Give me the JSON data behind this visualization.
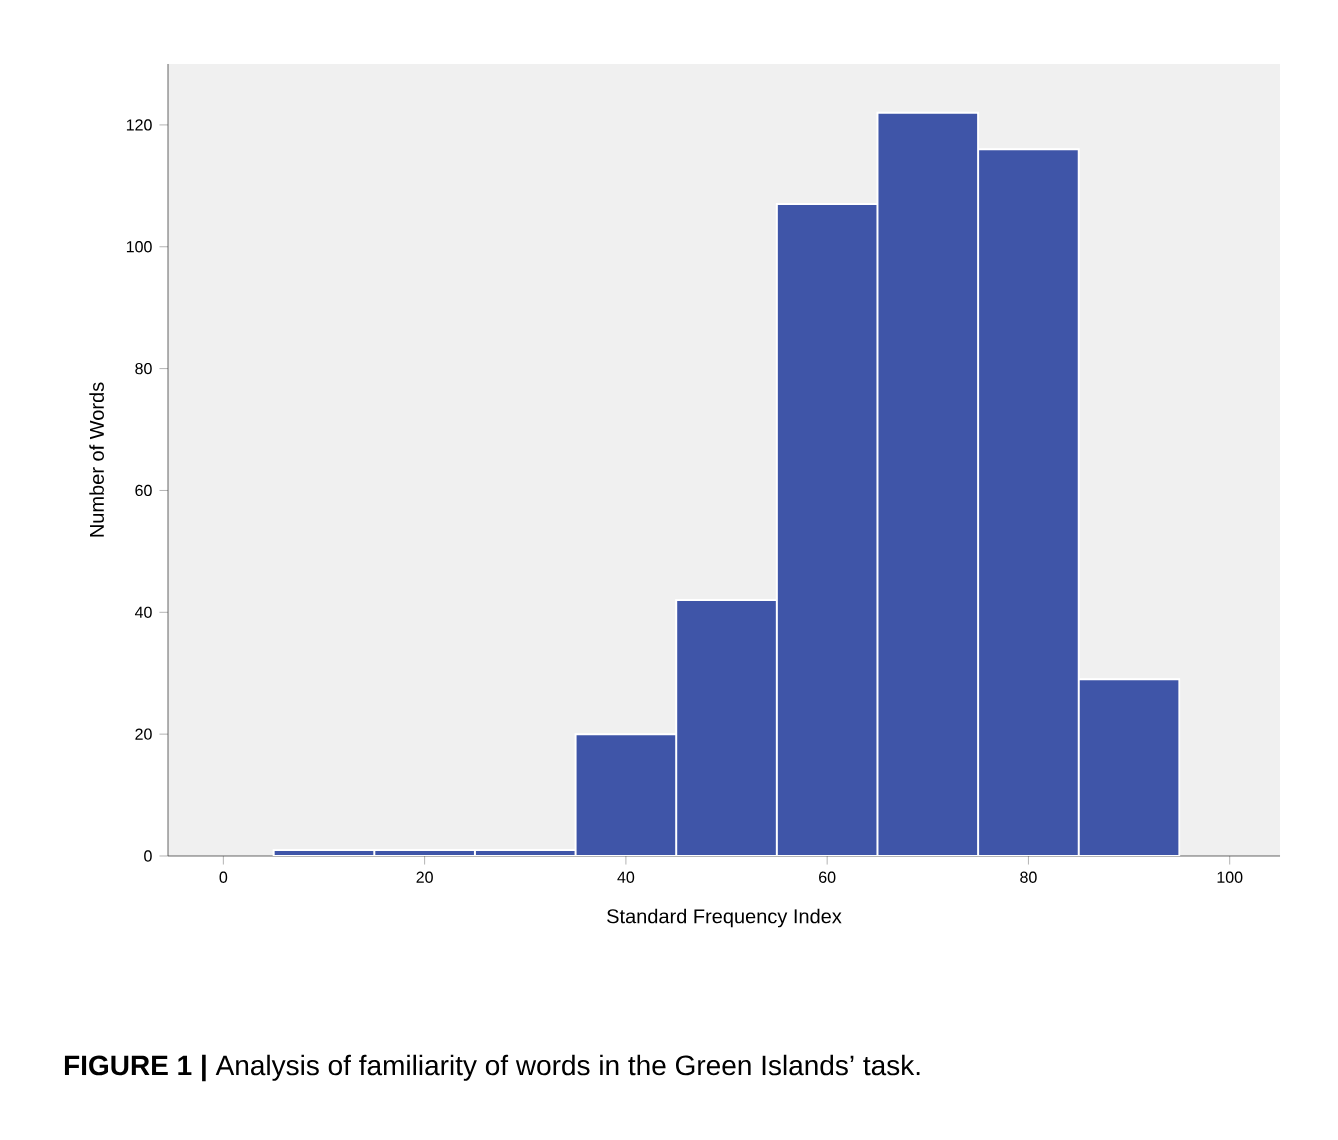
{
  "chart_data": {
    "type": "histogram",
    "xlabel": "Standard Frequency Index",
    "ylabel": "Number of Words",
    "annotations": [
      "**FIGURE 1 |** Analysis of familiarity of words in the Green Islands’ task."
    ],
    "bins": [
      5,
      15,
      25,
      35,
      45,
      55,
      65,
      75,
      85,
      95
    ],
    "values": [
      1,
      1,
      1,
      20,
      42,
      107,
      122,
      116,
      29
    ],
    "color": "#3f55a8",
    "xlim": [
      -5.5,
      105
    ],
    "ylim": [
      0,
      130
    ],
    "xticks": [
      0,
      20,
      40,
      60,
      80,
      100
    ],
    "yticks": [
      0,
      20,
      40,
      60,
      80,
      100,
      120
    ],
    "grid": false
  }
}
